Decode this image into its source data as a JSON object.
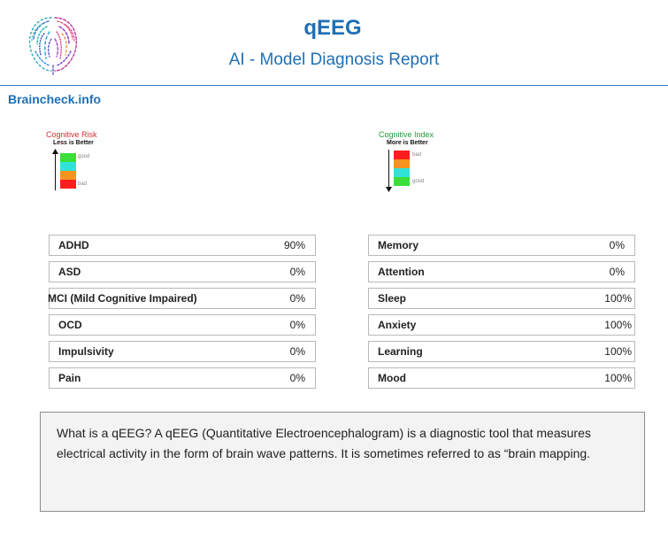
{
  "header": {
    "title": "qEEG",
    "subtitle": "AI - Model Diagnosis Report",
    "logo_icon": "brain-logo-icon"
  },
  "site_link": "Braincheck.info",
  "legend_risk": {
    "title": "Cognitive Risk",
    "subtitle": "Less is Better",
    "good_label": "good",
    "bad_label": "bad",
    "title_color": "#d32f2f",
    "colors": [
      "#39e03a",
      "#31e3d6",
      "#f7941d",
      "#ff1e1e"
    ]
  },
  "legend_index": {
    "title": "Cognitive Index",
    "subtitle": "More is Better",
    "bad_label": "bad",
    "good_label": "good",
    "title_color": "#1e9b3a",
    "colors": [
      "#ff1e1e",
      "#f7941d",
      "#31e3d6",
      "#39e03a"
    ]
  },
  "risk_table": [
    {
      "label": "ADHD",
      "value": "90%"
    },
    {
      "label": "ASD",
      "value": "0%"
    },
    {
      "label": "MCI (Mild Cognitive Impaired)",
      "value": "0%"
    },
    {
      "label": "OCD",
      "value": "0%"
    },
    {
      "label": "Impulsivity",
      "value": "0%"
    },
    {
      "label": "Pain",
      "value": "0%"
    }
  ],
  "index_table": [
    {
      "label": "Memory",
      "value": "0%"
    },
    {
      "label": "Attention",
      "value": "0%"
    },
    {
      "label": "Sleep",
      "value": "100%"
    },
    {
      "label": "Anxiety",
      "value": "100%"
    },
    {
      "label": "Learning",
      "value": "100%"
    },
    {
      "label": "Mood",
      "value": "100%"
    }
  ],
  "info": {
    "text": "What is a qEEG? A qEEG (Quantitative Electroencephalogram) is a diagnostic tool that measures electrical activity in the form of brain wave patterns. It is sometimes referred to as “brain mapping."
  }
}
